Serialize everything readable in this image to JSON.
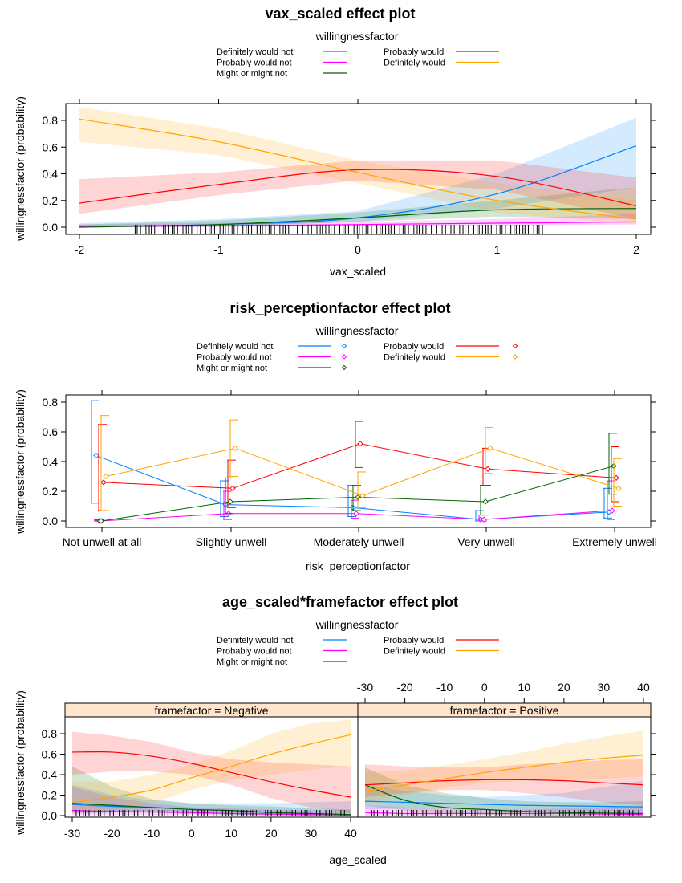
{
  "colors": {
    "Definitely would not": "#0080ff",
    "Probably would not": "#ff00ff",
    "Might or might not": "#006400",
    "Probably would": "#ff0000",
    "Definitely would": "#ffa500",
    "strip_bg": "#ffe5cc",
    "band_opacity": 0.17
  },
  "legend": {
    "title": "willingnessfactor",
    "levels": [
      "Definitely would not",
      "Probably would not",
      "Might or might not",
      "Probably would",
      "Definitely would"
    ]
  },
  "chart_data": [
    {
      "type": "line",
      "title": "vax_scaled effect plot",
      "xlabel": "vax_scaled",
      "ylabel": "willingnessfactor (probability)",
      "xlim": [
        -2,
        2
      ],
      "ylim": [
        0,
        0.8
      ],
      "xticks": [
        "-2",
        "-1",
        "0",
        "1",
        "2"
      ],
      "yticks": [
        "0.0",
        "0.2",
        "0.4",
        "0.6",
        "0.8"
      ],
      "x": [
        -2,
        -1,
        0,
        1,
        2
      ],
      "series": [
        {
          "name": "Definitely would not",
          "values": [
            0.005,
            0.02,
            0.07,
            0.25,
            0.61
          ],
          "lower": [
            0.0,
            0.005,
            0.04,
            0.14,
            0.3
          ],
          "upper": [
            0.03,
            0.06,
            0.12,
            0.4,
            0.82
          ]
        },
        {
          "name": "Probably would not",
          "values": [
            0.005,
            0.01,
            0.02,
            0.03,
            0.04
          ],
          "lower": [
            0.0,
            0.0,
            0.01,
            0.01,
            0.02
          ],
          "upper": [
            0.02,
            0.03,
            0.04,
            0.06,
            0.1
          ]
        },
        {
          "name": "Might or might not",
          "values": [
            0.0,
            0.02,
            0.07,
            0.13,
            0.14
          ],
          "lower": [
            0.0,
            0.005,
            0.04,
            0.08,
            0.06
          ],
          "upper": [
            0.02,
            0.05,
            0.11,
            0.2,
            0.3
          ]
        },
        {
          "name": "Probably would",
          "values": [
            0.18,
            0.32,
            0.43,
            0.38,
            0.16
          ],
          "lower": [
            0.1,
            0.24,
            0.35,
            0.28,
            0.06
          ],
          "upper": [
            0.36,
            0.41,
            0.5,
            0.5,
            0.37
          ]
        },
        {
          "name": "Definitely would",
          "values": [
            0.81,
            0.64,
            0.41,
            0.2,
            0.06
          ],
          "lower": [
            0.64,
            0.54,
            0.33,
            0.11,
            0.02
          ],
          "upper": [
            0.9,
            0.74,
            0.5,
            0.33,
            0.2
          ]
        }
      ]
    },
    {
      "type": "line",
      "title": "risk_perceptionfactor effect plot",
      "xlabel": "risk_perceptionfactor",
      "ylabel": "willingnessfactor (probability)",
      "ylim": [
        0,
        0.8
      ],
      "yticks": [
        "0.0",
        "0.2",
        "0.4",
        "0.6",
        "0.8"
      ],
      "categories": [
        "Not unwell at all",
        "Slightly unwell",
        "Moderately unwell",
        "Very unwell",
        "Extremely unwell"
      ],
      "series": [
        {
          "name": "Definitely would not",
          "values": [
            0.44,
            0.11,
            0.09,
            0.01,
            0.06
          ],
          "lower": [
            0.12,
            0.03,
            0.03,
            0.0,
            0.02
          ],
          "upper": [
            0.81,
            0.27,
            0.24,
            0.07,
            0.22
          ]
        },
        {
          "name": "Probably would not",
          "values": [
            0.0,
            0.05,
            0.05,
            0.01,
            0.07
          ],
          "lower": [
            0.0,
            0.01,
            0.02,
            0.0,
            0.01
          ],
          "upper": [
            0.01,
            0.2,
            0.14,
            0.04,
            0.27
          ]
        },
        {
          "name": "Might or might not",
          "values": [
            0.0,
            0.13,
            0.16,
            0.13,
            0.37
          ],
          "lower": [
            0.0,
            0.05,
            0.07,
            0.04,
            0.18
          ],
          "upper": [
            0.01,
            0.29,
            0.24,
            0.24,
            0.59
          ]
        },
        {
          "name": "Probably would",
          "values": [
            0.26,
            0.22,
            0.52,
            0.35,
            0.29
          ],
          "lower": [
            0.07,
            0.09,
            0.36,
            0.24,
            0.13
          ],
          "upper": [
            0.65,
            0.41,
            0.67,
            0.49,
            0.5
          ]
        },
        {
          "name": "Definitely would",
          "values": [
            0.3,
            0.49,
            0.17,
            0.49,
            0.22
          ],
          "lower": [
            0.07,
            0.3,
            0.09,
            0.32,
            0.1
          ],
          "upper": [
            0.71,
            0.68,
            0.33,
            0.63,
            0.42
          ]
        }
      ]
    },
    {
      "type": "line",
      "title": "age_scaled*framefactor effect plot",
      "xlabel": "age_scaled",
      "ylabel": "willingnessfactor (probability)",
      "xlim": [
        -30,
        40
      ],
      "ylim": [
        0,
        0.8
      ],
      "xticks": [
        "-30",
        "-20",
        "-10",
        "0",
        "10",
        "20",
        "30",
        "40"
      ],
      "yticks": [
        "0.0",
        "0.2",
        "0.4",
        "0.6",
        "0.8"
      ],
      "x": [
        -30,
        -20,
        -10,
        0,
        10,
        20,
        30,
        40
      ],
      "panels": [
        {
          "strip": "framefactor = Negative",
          "series": [
            {
              "name": "Definitely would not",
              "values": [
                0.11,
                0.09,
                0.08,
                0.06,
                0.05,
                0.03,
                0.02,
                0.01
              ],
              "lower": [
                0.03,
                0.03,
                0.03,
                0.02,
                0.01,
                0.005,
                0.0,
                0.0
              ],
              "upper": [
                0.3,
                0.2,
                0.15,
                0.12,
                0.12,
                0.12,
                0.13,
                0.14
              ]
            },
            {
              "name": "Probably would not",
              "values": [
                0.05,
                0.04,
                0.035,
                0.03,
                0.02,
                0.015,
                0.01,
                0.005
              ],
              "lower": [
                0.005,
                0.005,
                0.005,
                0.005,
                0.0,
                0.0,
                0.0,
                0.0
              ],
              "upper": [
                0.28,
                0.18,
                0.12,
                0.08,
                0.07,
                0.06,
                0.05,
                0.05
              ]
            },
            {
              "name": "Might or might not",
              "values": [
                0.12,
                0.1,
                0.08,
                0.06,
                0.05,
                0.03,
                0.02,
                0.01
              ],
              "lower": [
                0.02,
                0.03,
                0.03,
                0.02,
                0.01,
                0.005,
                0.0,
                0.0
              ],
              "upper": [
                0.48,
                0.28,
                0.16,
                0.12,
                0.1,
                0.09,
                0.07,
                0.06
              ]
            },
            {
              "name": "Probably would",
              "values": [
                0.62,
                0.62,
                0.58,
                0.51,
                0.42,
                0.33,
                0.25,
                0.18
              ],
              "lower": [
                0.4,
                0.43,
                0.43,
                0.4,
                0.3,
                0.17,
                0.08,
                0.03
              ],
              "upper": [
                0.82,
                0.78,
                0.72,
                0.62,
                0.55,
                0.52,
                0.5,
                0.48
              ]
            },
            {
              "name": "Definitely would",
              "values": [
                0.13,
                0.18,
                0.25,
                0.37,
                0.48,
                0.6,
                0.7,
                0.79
              ],
              "lower": [
                0.03,
                0.06,
                0.12,
                0.25,
                0.35,
                0.4,
                0.45,
                0.48
              ],
              "upper": [
                0.33,
                0.33,
                0.4,
                0.5,
                0.63,
                0.8,
                0.9,
                0.94
              ]
            }
          ]
        },
        {
          "strip": "framefactor = Positive",
          "series": [
            {
              "name": "Definitely would not",
              "values": [
                0.14,
                0.13,
                0.12,
                0.11,
                0.1,
                0.095,
                0.09,
                0.085
              ],
              "lower": [
                0.06,
                0.07,
                0.07,
                0.06,
                0.04,
                0.03,
                0.02,
                0.01
              ],
              "upper": [
                0.3,
                0.24,
                0.2,
                0.18,
                0.2,
                0.22,
                0.28,
                0.34
              ]
            },
            {
              "name": "Probably would not",
              "values": [
                0.03,
                0.02,
                0.02,
                0.02,
                0.02,
                0.02,
                0.015,
                0.01
              ],
              "lower": [
                0.0,
                0.0,
                0.0,
                0.0,
                0.0,
                0.0,
                0.0,
                0.0
              ],
              "upper": [
                0.1,
                0.08,
                0.07,
                0.06,
                0.06,
                0.07,
                0.08,
                0.1
              ]
            },
            {
              "name": "Might or might not",
              "values": [
                0.3,
                0.15,
                0.08,
                0.06,
                0.04,
                0.03,
                0.025,
                0.02
              ],
              "lower": [
                0.1,
                0.05,
                0.02,
                0.01,
                0.005,
                0.0,
                0.0,
                0.0
              ],
              "upper": [
                0.47,
                0.3,
                0.22,
                0.17,
                0.14,
                0.13,
                0.13,
                0.14
              ]
            },
            {
              "name": "Probably would",
              "values": [
                0.3,
                0.32,
                0.34,
                0.35,
                0.35,
                0.34,
                0.32,
                0.3
              ],
              "lower": [
                0.18,
                0.22,
                0.25,
                0.25,
                0.22,
                0.18,
                0.13,
                0.1
              ],
              "upper": [
                0.5,
                0.48,
                0.47,
                0.47,
                0.5,
                0.52,
                0.54,
                0.55
              ]
            },
            {
              "name": "Definitely would",
              "values": [
                0.24,
                0.3,
                0.36,
                0.42,
                0.47,
                0.52,
                0.56,
                0.59
              ],
              "lower": [
                0.12,
                0.2,
                0.27,
                0.32,
                0.34,
                0.35,
                0.36,
                0.38
              ],
              "upper": [
                0.42,
                0.44,
                0.49,
                0.55,
                0.62,
                0.7,
                0.77,
                0.83
              ]
            }
          ]
        }
      ]
    }
  ]
}
